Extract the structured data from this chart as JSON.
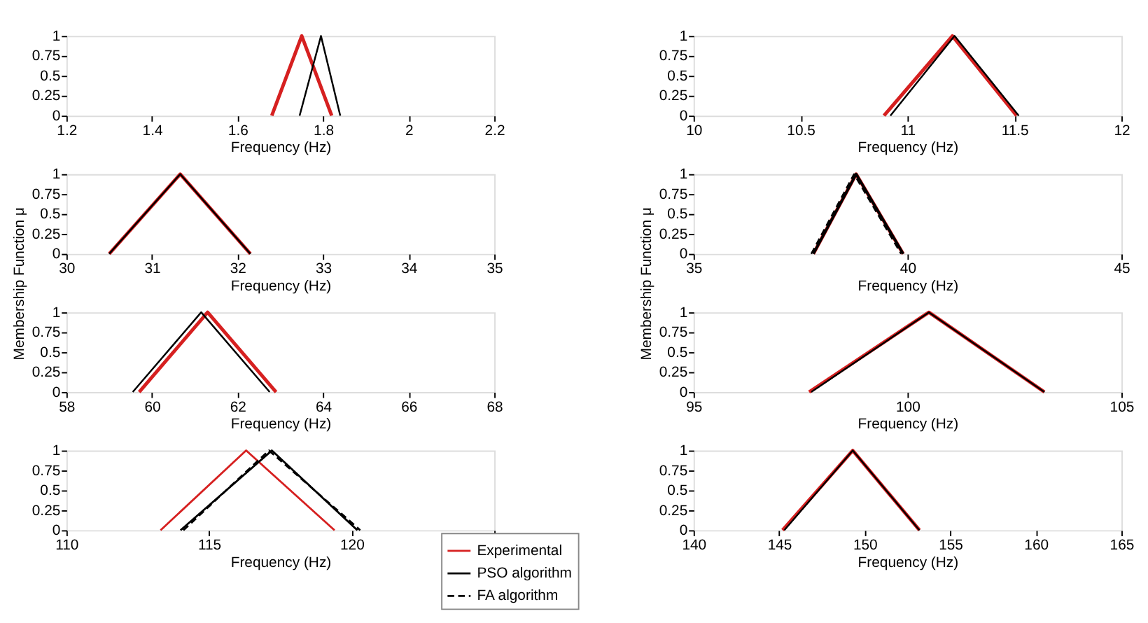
{
  "chart_data": [
    {
      "type": "line",
      "xlabel": "Frequency (Hz)",
      "xlim": [
        1.2,
        2.2
      ],
      "xticks": [
        1.2,
        1.4,
        1.6,
        1.8,
        2,
        2.2
      ],
      "ylim": [
        0,
        1
      ],
      "yticks": [
        0,
        0.25,
        0.5,
        0.75,
        1
      ],
      "grid": false,
      "marker": "none",
      "series": [
        {
          "color": "#d62020",
          "line_style": "solid",
          "x": [
            1.68,
            1.75,
            1.82
          ],
          "values": [
            0,
            1,
            0
          ]
        },
        {
          "color": "#000000",
          "line_style": "solid",
          "x": [
            1.745,
            1.795,
            1.84
          ],
          "values": [
            0,
            1,
            0
          ]
        }
      ]
    },
    {
      "type": "line",
      "xlabel": "Frequency (Hz)",
      "xlim": [
        10,
        12
      ],
      "xticks": [
        10,
        10.5,
        11,
        11.5,
        12
      ],
      "ylim": [
        0,
        1
      ],
      "yticks": [
        0,
        0.25,
        0.5,
        0.75,
        1
      ],
      "grid": false,
      "marker": "none",
      "series": [
        {
          "color": "#d62020",
          "line_style": "solid",
          "x": [
            10.89,
            11.21,
            11.51
          ],
          "values": [
            0,
            1,
            0
          ]
        },
        {
          "color": "#000000",
          "line_style": "solid",
          "x": [
            10.92,
            11.22,
            11.52
          ],
          "values": [
            0,
            1,
            0
          ]
        }
      ]
    },
    {
      "type": "line",
      "xlabel": "Frequency (Hz)",
      "ylabel": "Membership Function μ",
      "xlim": [
        30,
        35
      ],
      "xticks": [
        30,
        31,
        32,
        33,
        34,
        35
      ],
      "ylim": [
        0,
        1
      ],
      "yticks": [
        0,
        0.25,
        0.5,
        0.75,
        1
      ],
      "grid": false,
      "marker": "none",
      "series": [
        {
          "color": "#d62020",
          "line_style": "solid",
          "x": [
            30.5,
            31.33,
            32.15
          ],
          "values": [
            0,
            1,
            0
          ]
        },
        {
          "color": "#000000",
          "line_style": "solid",
          "x": [
            30.5,
            31.33,
            32.15
          ],
          "values": [
            0,
            1,
            0
          ]
        }
      ]
    },
    {
      "type": "line",
      "xlabel": "Frequency (Hz)",
      "ylabel": "Membership Function μ",
      "xlim": [
        35,
        45
      ],
      "xticks": [
        35,
        40,
        45
      ],
      "ylim": [
        0,
        1
      ],
      "yticks": [
        0,
        0.25,
        0.5,
        0.75,
        1
      ],
      "grid": false,
      "marker": "none",
      "series": [
        {
          "color": "#d62020",
          "line_style": "solid",
          "x": [
            37.8,
            38.8,
            39.9
          ],
          "values": [
            0,
            1,
            0
          ]
        },
        {
          "color": "#000000",
          "line_style": "solid",
          "x": [
            37.8,
            38.8,
            39.9
          ],
          "values": [
            0,
            1,
            0
          ]
        },
        {
          "color": "#000000",
          "line_style": "dashed",
          "x": [
            37.75,
            38.75,
            39.85
          ],
          "values": [
            0,
            1,
            0
          ]
        }
      ]
    },
    {
      "type": "line",
      "xlabel": "Frequency (Hz)",
      "xlim": [
        58,
        68
      ],
      "xticks": [
        58,
        60,
        62,
        64,
        66,
        68
      ],
      "ylim": [
        0,
        1
      ],
      "yticks": [
        0,
        0.25,
        0.5,
        0.75,
        1
      ],
      "grid": false,
      "marker": "none",
      "series": [
        {
          "color": "#d62020",
          "line_style": "solid",
          "x": [
            59.7,
            61.3,
            62.9
          ],
          "values": [
            0,
            1,
            0
          ]
        },
        {
          "color": "#000000",
          "line_style": "solid",
          "x": [
            59.55,
            61.15,
            62.75
          ],
          "values": [
            0,
            1,
            0
          ]
        }
      ]
    },
    {
      "type": "line",
      "xlabel": "Frequency (Hz)",
      "xlim": [
        95,
        105
      ],
      "xticks": [
        95,
        100,
        105
      ],
      "ylim": [
        0,
        1
      ],
      "yticks": [
        0,
        0.25,
        0.5,
        0.75,
        1
      ],
      "grid": false,
      "marker": "none",
      "series": [
        {
          "color": "#d62020",
          "line_style": "solid",
          "x": [
            97.7,
            100.5,
            103.2
          ],
          "values": [
            0,
            1,
            0
          ]
        },
        {
          "color": "#000000",
          "line_style": "solid",
          "x": [
            97.75,
            100.5,
            103.2
          ],
          "values": [
            0,
            1,
            0
          ]
        }
      ]
    },
    {
      "type": "line",
      "xlabel": "Frequency (Hz)",
      "xlim": [
        110,
        125
      ],
      "xticks": [
        110,
        115,
        120,
        {
          "value": 125,
          "label": null
        }
      ],
      "ylim": [
        0,
        1
      ],
      "yticks": [
        0,
        0.25,
        0.5,
        0.75,
        1
      ],
      "grid": false,
      "marker": "none",
      "legend": "bottom right",
      "series": [
        {
          "name": "Experimental",
          "color": "#d62020",
          "line_style": "solid",
          "x": [
            113.3,
            116.3,
            119.4
          ],
          "values": [
            0,
            1,
            0
          ]
        },
        {
          "name": "PSO algorithm",
          "color": "#000000",
          "line_style": "solid",
          "x": [
            114.0,
            117.2,
            120.2
          ],
          "values": [
            0,
            1,
            0
          ]
        },
        {
          "name": "FA algorithm",
          "color": "#000000",
          "line_style": "dashed",
          "x": [
            114.1,
            117.1,
            120.3
          ],
          "values": [
            0,
            1,
            0
          ]
        }
      ]
    },
    {
      "type": "line",
      "xlabel": "Frequency (Hz)",
      "xlim": [
        140,
        165
      ],
      "xticks": [
        140,
        145,
        150,
        155,
        160,
        165
      ],
      "ylim": [
        0,
        1
      ],
      "yticks": [
        0,
        0.25,
        0.5,
        0.75,
        1
      ],
      "grid": false,
      "marker": "none",
      "series": [
        {
          "color": "#d62020",
          "line_style": "solid",
          "x": [
            145.2,
            149.3,
            153.2
          ],
          "values": [
            0,
            1,
            0
          ]
        },
        {
          "color": "#000000",
          "line_style": "solid",
          "x": [
            145.3,
            149.3,
            153.2
          ],
          "values": [
            0,
            1,
            0
          ]
        }
      ]
    }
  ]
}
